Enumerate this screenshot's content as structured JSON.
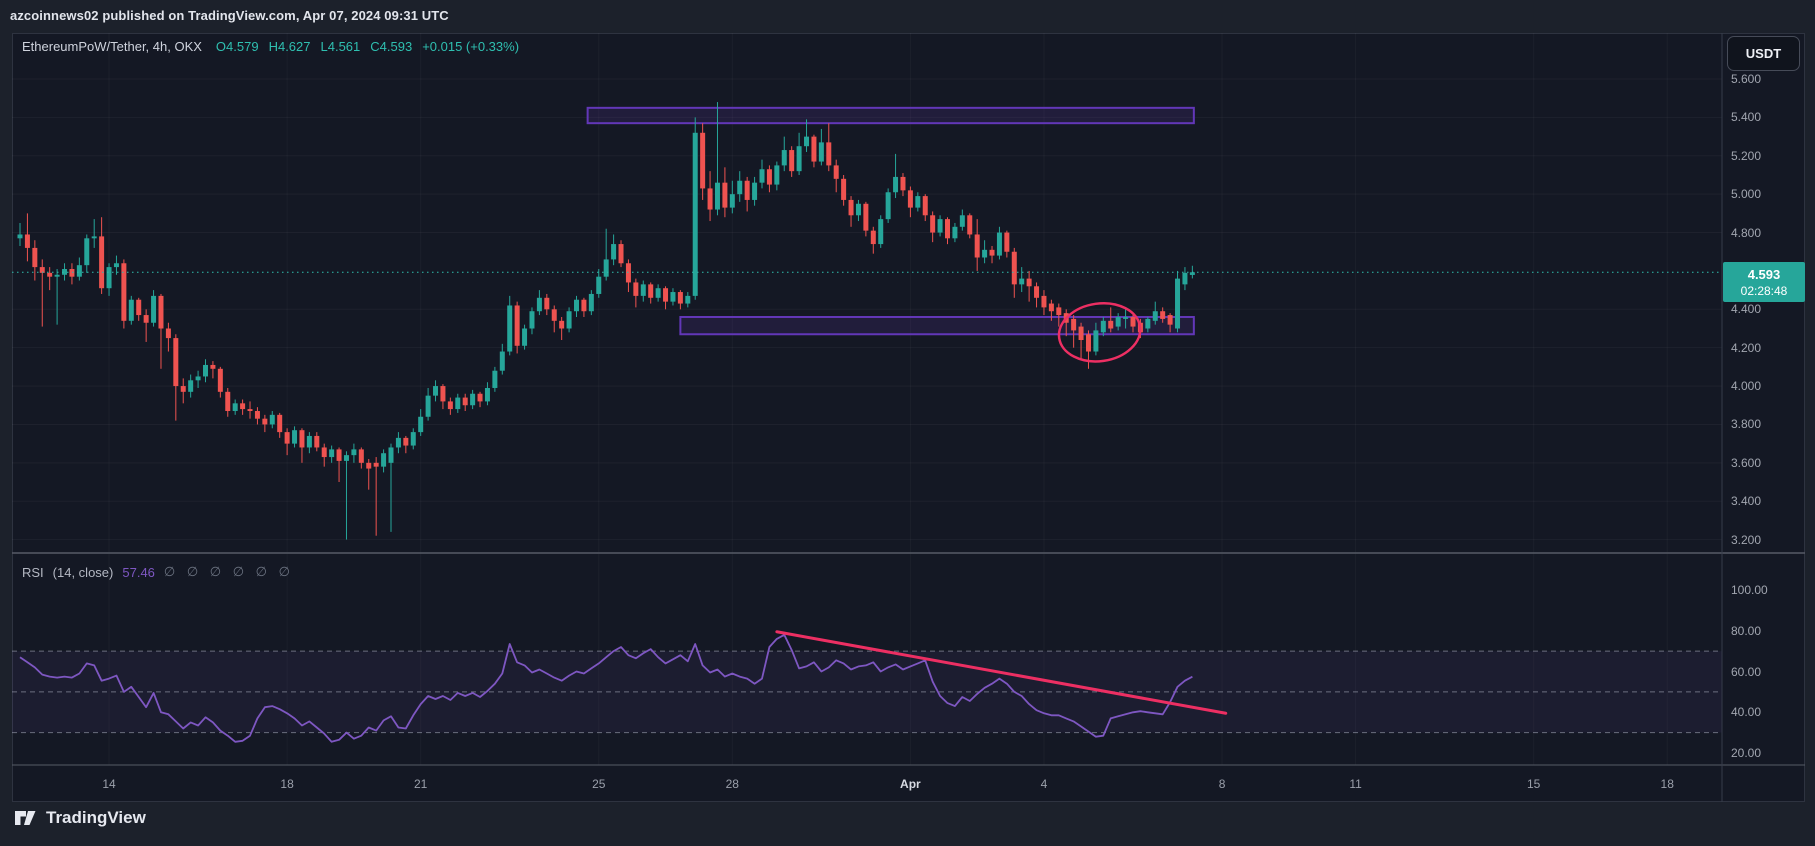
{
  "header": {
    "attribution": "azcoinnews02 published on TradingView.com, Apr 07, 2024 09:31 UTC"
  },
  "top_right": {
    "currency_label": "USDT"
  },
  "legend": {
    "symbol_title": "EthereumPoW/Tether, 4h, OKX",
    "open": "O4.579",
    "high": "H4.627",
    "low": "L4.561",
    "close": "C4.593",
    "change": "+0.015 (+0.33%)"
  },
  "rsi_legend": {
    "title": "RSI",
    "params": "(14, close)",
    "value": "57.46",
    "hidden_slots": "∅ ∅ ∅ ∅ ∅ ∅"
  },
  "price_badge": {
    "price": "4.593",
    "countdown": "02:28:48"
  },
  "footer": {
    "brand": "TradingView"
  },
  "colors": {
    "up": "#26a69a",
    "down": "#ef5350",
    "accent_teal": "#2fbfb0",
    "rsi_purple": "#7e57c2",
    "annotation_pink": "#ed2f63",
    "zone_border": "#6237b8",
    "zone_fill": "rgba(103,58,183,0.16)",
    "badge_bg": "#26a69a",
    "background": "#141824"
  },
  "chart_data": {
    "type": "candlestick",
    "title": "EthereumPoW/Tether",
    "timeframe": "4h",
    "exchange": "OKX",
    "last_bar": {
      "open": 4.579,
      "high": 4.627,
      "low": 4.561,
      "close": 4.593,
      "change": 0.015,
      "change_pct": 0.33
    },
    "price_axis": {
      "visible_min": 3.13,
      "visible_max": 5.84,
      "tick_values": [
        5.6,
        5.4,
        5.2,
        5.0,
        4.8,
        4.4,
        4.2,
        4.0,
        3.8,
        3.6,
        3.4,
        3.2
      ],
      "last_price": 4.593
    },
    "time_axis": {
      "ticks": [
        {
          "label": "14",
          "bar": 12
        },
        {
          "label": "18",
          "bar": 36
        },
        {
          "label": "21",
          "bar": 54
        },
        {
          "label": "25",
          "bar": 78
        },
        {
          "label": "28",
          "bar": 96
        },
        {
          "label": "Apr",
          "bar": 120,
          "emphasis": true
        },
        {
          "label": "4",
          "bar": 138
        },
        {
          "label": "8",
          "bar": 162
        },
        {
          "label": "11",
          "bar": 180
        },
        {
          "label": "15",
          "bar": 204
        },
        {
          "label": "18",
          "bar": 222
        }
      ]
    },
    "candles": [
      [
        4.77,
        4.85,
        4.73,
        4.79
      ],
      [
        4.79,
        4.9,
        4.65,
        4.72
      ],
      [
        4.72,
        4.76,
        4.55,
        4.62
      ],
      [
        4.62,
        4.66,
        4.31,
        4.59
      ],
      [
        4.59,
        4.62,
        4.5,
        4.57
      ],
      [
        4.57,
        4.61,
        4.32,
        4.58
      ],
      [
        4.58,
        4.64,
        4.55,
        4.61
      ],
      [
        4.61,
        4.64,
        4.53,
        4.57
      ],
      [
        4.57,
        4.67,
        4.55,
        4.63
      ],
      [
        4.63,
        4.79,
        4.59,
        4.77
      ],
      [
        4.77,
        4.87,
        4.72,
        4.78
      ],
      [
        4.78,
        4.88,
        4.48,
        4.51
      ],
      [
        4.51,
        4.64,
        4.47,
        4.62
      ],
      [
        4.62,
        4.68,
        4.58,
        4.64
      ],
      [
        4.64,
        4.66,
        4.3,
        4.34
      ],
      [
        4.34,
        4.47,
        4.32,
        4.45
      ],
      [
        4.45,
        4.46,
        4.34,
        4.37
      ],
      [
        4.37,
        4.4,
        4.23,
        4.33
      ],
      [
        4.33,
        4.5,
        4.31,
        4.47
      ],
      [
        4.47,
        4.48,
        4.09,
        4.3
      ],
      [
        4.3,
        4.33,
        4.18,
        4.25
      ],
      [
        4.25,
        4.27,
        3.82,
        4.0
      ],
      [
        4.0,
        4.04,
        3.91,
        3.97
      ],
      [
        3.97,
        4.06,
        3.94,
        4.03
      ],
      [
        4.03,
        4.08,
        3.99,
        4.05
      ],
      [
        4.05,
        4.14,
        4.02,
        4.11
      ],
      [
        4.11,
        4.13,
        4.04,
        4.09
      ],
      [
        4.09,
        4.1,
        3.94,
        3.97
      ],
      [
        3.97,
        3.99,
        3.84,
        3.87
      ],
      [
        3.87,
        3.93,
        3.85,
        3.91
      ],
      [
        3.91,
        3.93,
        3.85,
        3.88
      ],
      [
        3.88,
        3.92,
        3.83,
        3.87
      ],
      [
        3.87,
        3.89,
        3.8,
        3.83
      ],
      [
        3.83,
        3.85,
        3.76,
        3.8
      ],
      [
        3.8,
        3.87,
        3.78,
        3.85
      ],
      [
        3.85,
        3.86,
        3.73,
        3.76
      ],
      [
        3.76,
        3.78,
        3.64,
        3.7
      ],
      [
        3.7,
        3.79,
        3.68,
        3.77
      ],
      [
        3.77,
        3.78,
        3.6,
        3.68
      ],
      [
        3.68,
        3.76,
        3.65,
        3.74
      ],
      [
        3.74,
        3.76,
        3.66,
        3.68
      ],
      [
        3.68,
        3.7,
        3.58,
        3.63
      ],
      [
        3.63,
        3.69,
        3.6,
        3.67
      ],
      [
        3.67,
        3.68,
        3.5,
        3.61
      ],
      [
        3.61,
        3.66,
        3.2,
        3.64
      ],
      [
        3.64,
        3.7,
        3.6,
        3.67
      ],
      [
        3.67,
        3.68,
        3.57,
        3.6
      ],
      [
        3.6,
        3.62,
        3.46,
        3.57
      ],
      [
        3.6,
        3.63,
        3.22,
        3.58
      ],
      [
        3.58,
        3.67,
        3.55,
        3.65
      ],
      [
        3.6,
        3.7,
        3.24,
        3.68
      ],
      [
        3.68,
        3.76,
        3.65,
        3.73
      ],
      [
        3.73,
        3.74,
        3.65,
        3.69
      ],
      [
        3.69,
        3.78,
        3.67,
        3.76
      ],
      [
        3.76,
        3.88,
        3.74,
        3.84
      ],
      [
        3.84,
        3.99,
        3.82,
        3.95
      ],
      [
        3.95,
        4.03,
        3.92,
        4.0
      ],
      [
        4.0,
        4.01,
        3.88,
        3.92
      ],
      [
        3.92,
        3.94,
        3.85,
        3.88
      ],
      [
        3.88,
        3.96,
        3.86,
        3.94
      ],
      [
        3.94,
        3.96,
        3.87,
        3.9
      ],
      [
        3.9,
        3.98,
        3.88,
        3.96
      ],
      [
        3.96,
        3.97,
        3.89,
        3.92
      ],
      [
        3.92,
        4.02,
        3.9,
        3.99
      ],
      [
        3.99,
        4.1,
        3.97,
        4.08
      ],
      [
        4.08,
        4.22,
        4.06,
        4.18
      ],
      [
        4.18,
        4.47,
        4.16,
        4.42
      ],
      [
        4.42,
        4.44,
        4.17,
        4.21
      ],
      [
        4.21,
        4.32,
        4.19,
        4.3
      ],
      [
        4.3,
        4.41,
        4.27,
        4.39
      ],
      [
        4.39,
        4.5,
        4.37,
        4.46
      ],
      [
        4.46,
        4.48,
        4.37,
        4.4
      ],
      [
        4.4,
        4.42,
        4.28,
        4.34
      ],
      [
        4.34,
        4.36,
        4.24,
        4.3
      ],
      [
        4.3,
        4.41,
        4.28,
        4.39
      ],
      [
        4.39,
        4.47,
        4.36,
        4.45
      ],
      [
        4.45,
        4.46,
        4.36,
        4.39
      ],
      [
        4.39,
        4.5,
        4.37,
        4.48
      ],
      [
        4.48,
        4.61,
        4.46,
        4.57
      ],
      [
        4.57,
        4.82,
        4.55,
        4.66
      ],
      [
        4.66,
        4.79,
        4.63,
        4.74
      ],
      [
        4.74,
        4.76,
        4.62,
        4.64
      ],
      [
        4.64,
        4.66,
        4.49,
        4.54
      ],
      [
        4.54,
        4.56,
        4.41,
        4.47
      ],
      [
        4.47,
        4.55,
        4.44,
        4.53
      ],
      [
        4.53,
        4.54,
        4.43,
        4.46
      ],
      [
        4.46,
        4.53,
        4.44,
        4.51
      ],
      [
        4.51,
        4.52,
        4.4,
        4.44
      ],
      [
        4.44,
        4.51,
        4.42,
        4.49
      ],
      [
        4.49,
        4.5,
        4.4,
        4.43
      ],
      [
        4.43,
        4.49,
        4.41,
        4.47
      ],
      [
        4.47,
        5.4,
        4.45,
        5.32
      ],
      [
        5.32,
        5.37,
        4.97,
        5.03
      ],
      [
        5.03,
        5.12,
        4.86,
        4.92
      ],
      [
        4.92,
        5.48,
        4.89,
        5.06
      ],
      [
        5.06,
        5.14,
        4.88,
        4.93
      ],
      [
        4.93,
        5.07,
        4.9,
        5.0
      ],
      [
        5.0,
        5.12,
        4.96,
        5.07
      ],
      [
        5.07,
        5.09,
        4.91,
        4.97
      ],
      [
        4.97,
        5.09,
        4.94,
        5.06
      ],
      [
        5.06,
        5.18,
        5.03,
        5.13
      ],
      [
        5.13,
        5.15,
        5.01,
        5.05
      ],
      [
        5.05,
        5.17,
        5.02,
        5.15
      ],
      [
        5.15,
        5.3,
        5.12,
        5.23
      ],
      [
        5.23,
        5.25,
        5.09,
        5.12
      ],
      [
        5.12,
        5.32,
        5.1,
        5.25
      ],
      [
        5.25,
        5.39,
        5.22,
        5.3
      ],
      [
        5.3,
        5.31,
        5.14,
        5.17
      ],
      [
        5.17,
        5.34,
        5.15,
        5.27
      ],
      [
        5.27,
        5.37,
        5.12,
        5.15
      ],
      [
        5.15,
        5.18,
        5.01,
        5.08
      ],
      [
        5.08,
        5.1,
        4.94,
        4.97
      ],
      [
        4.97,
        4.99,
        4.83,
        4.89
      ],
      [
        4.89,
        4.97,
        4.86,
        4.95
      ],
      [
        4.95,
        4.96,
        4.78,
        4.81
      ],
      [
        4.81,
        4.83,
        4.69,
        4.74
      ],
      [
        4.74,
        4.89,
        4.72,
        4.87
      ],
      [
        4.87,
        5.03,
        4.85,
        5.01
      ],
      [
        5.01,
        5.21,
        4.98,
        5.09
      ],
      [
        5.09,
        5.11,
        4.99,
        5.02
      ],
      [
        5.02,
        5.04,
        4.88,
        4.93
      ],
      [
        4.93,
        5.01,
        4.91,
        4.99
      ],
      [
        4.99,
        5.0,
        4.86,
        4.89
      ],
      [
        4.89,
        4.91,
        4.75,
        4.8
      ],
      [
        4.8,
        4.89,
        4.78,
        4.87
      ],
      [
        4.87,
        4.88,
        4.74,
        4.77
      ],
      [
        4.77,
        4.85,
        4.75,
        4.83
      ],
      [
        4.83,
        4.92,
        4.81,
        4.89
      ],
      [
        4.89,
        4.9,
        4.77,
        4.79
      ],
      [
        4.79,
        4.87,
        4.6,
        4.67
      ],
      [
        4.67,
        4.76,
        4.64,
        4.71
      ],
      [
        4.71,
        4.73,
        4.64,
        4.68
      ],
      [
        4.68,
        4.83,
        4.66,
        4.8
      ],
      [
        4.8,
        4.81,
        4.67,
        4.7
      ],
      [
        4.7,
        4.72,
        4.46,
        4.53
      ],
      [
        4.53,
        4.62,
        4.49,
        4.56
      ],
      [
        4.56,
        4.6,
        4.44,
        4.52
      ],
      [
        4.52,
        4.54,
        4.41,
        4.46
      ],
      [
        4.47,
        4.5,
        4.37,
        4.41
      ],
      [
        4.43,
        4.45,
        4.34,
        4.39
      ],
      [
        4.41,
        4.43,
        4.31,
        4.37
      ],
      [
        4.38,
        4.4,
        4.26,
        4.33
      ],
      [
        4.35,
        4.37,
        4.2,
        4.29
      ],
      [
        4.31,
        4.33,
        4.14,
        4.24
      ],
      [
        4.27,
        4.29,
        4.09,
        4.18
      ],
      [
        4.18,
        4.33,
        4.16,
        4.29
      ],
      [
        4.28,
        4.36,
        4.26,
        4.34
      ],
      [
        4.34,
        4.41,
        4.28,
        4.3
      ],
      [
        4.31,
        4.38,
        4.29,
        4.36
      ],
      [
        4.35,
        4.41,
        4.3,
        4.36
      ],
      [
        4.36,
        4.38,
        4.28,
        4.31
      ],
      [
        4.33,
        4.35,
        4.25,
        4.28
      ],
      [
        4.3,
        4.36,
        4.28,
        4.35
      ],
      [
        4.34,
        4.44,
        4.32,
        4.39
      ],
      [
        4.39,
        4.41,
        4.33,
        4.35
      ],
      [
        4.37,
        4.38,
        4.28,
        4.32
      ],
      [
        4.3,
        4.6,
        4.28,
        4.56
      ],
      [
        4.53,
        4.62,
        4.5,
        4.59
      ],
      [
        4.579,
        4.627,
        4.561,
        4.593
      ]
    ],
    "rsi": {
      "period": 14,
      "source": "close",
      "current": 57.46,
      "levels_dashed": [
        70,
        50,
        30
      ],
      "axis_labels": [
        100,
        80,
        60,
        40,
        20
      ],
      "values": [
        67,
        64.5,
        62,
        58.5,
        57.5,
        57,
        57.5,
        57,
        59,
        64,
        63,
        55.5,
        56.5,
        58,
        50,
        52.5,
        47.5,
        42.5,
        49.5,
        40,
        39,
        35.5,
        32,
        35,
        33.5,
        37.5,
        35,
        31,
        28.5,
        25.5,
        26,
        28.5,
        37,
        42.5,
        43,
        41.5,
        39.5,
        37,
        33.5,
        35.5,
        32.5,
        29.5,
        25.5,
        26.5,
        30,
        27,
        28.5,
        32.5,
        31,
        36,
        38,
        32.5,
        32,
        38.5,
        44,
        48,
        46.5,
        48,
        46,
        49.5,
        48,
        49.5,
        47.5,
        50.5,
        54,
        59,
        73.5,
        64.5,
        63,
        59.5,
        61,
        59,
        57,
        55.5,
        58,
        60,
        59,
        61.5,
        64,
        67,
        70,
        72,
        68,
        66.5,
        69,
        71,
        67,
        64,
        66,
        68,
        65,
        73.5,
        63,
        59.5,
        61,
        57.5,
        59,
        57.5,
        56.5,
        54,
        56.5,
        72,
        76,
        78,
        70.5,
        61.5,
        62.5,
        64.5,
        60,
        62,
        65.5,
        64,
        61,
        62.5,
        63,
        64.5,
        60,
        62,
        63.5,
        61,
        62.5,
        64,
        65.5,
        55,
        48,
        44.5,
        43,
        47.5,
        45.5,
        49,
        52,
        54,
        56.5,
        54,
        50,
        48,
        44,
        41,
        39.5,
        38.5,
        38.5,
        37,
        35.5,
        33,
        30.5,
        28,
        28.5,
        37,
        38,
        39,
        40,
        40.5,
        40,
        39.5,
        39,
        45,
        52.5,
        55.5,
        57.46
      ]
    },
    "zones": [
      {
        "name": "resistance-zone",
        "price_top": 5.45,
        "price_bottom": 5.37,
        "bar_start": 76.5,
        "bar_end": 158.2
      },
      {
        "name": "support-zone",
        "price_top": 4.36,
        "price_bottom": 4.27,
        "bar_start": 89,
        "bar_end": 158.2
      }
    ],
    "ellipse_annotation": {
      "bar_center": 145.5,
      "price_center": 4.28,
      "bar_radius": 5.5,
      "price_radius": 0.15,
      "rotate_deg": -8
    },
    "rsi_trendline": {
      "bar_start": 102,
      "rsi_start": 79.5,
      "bar_end": 162.5,
      "rsi_end": 39.5
    }
  }
}
